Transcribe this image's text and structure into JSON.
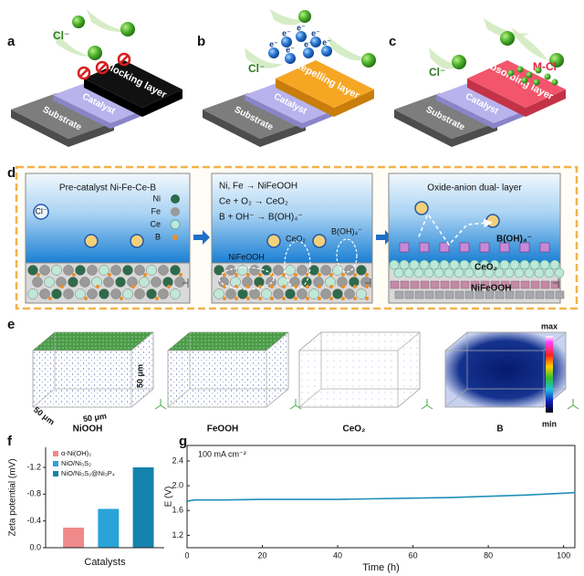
{
  "panel_a": {
    "label": "a",
    "ion": "Cl⁻",
    "layer": "Blocking layer",
    "catalyst": "Catalyst",
    "substrate": "Substrate"
  },
  "panel_b": {
    "label": "b",
    "ion": "Cl⁻",
    "electron": "e⁻",
    "layer": "Repelling layer",
    "catalyst": "Catalyst",
    "substrate": "Substrate"
  },
  "panel_c": {
    "label": "c",
    "ion": "Cl⁻",
    "product": "M-Cl",
    "layer": "Absorbing layer",
    "catalyst": "Catalyst",
    "substrate": "Substrate"
  },
  "panel_d": {
    "label": "d",
    "box1": {
      "title": "Pre-catalyst Ni-Fe-Ce-B",
      "ion": "Cl⁻",
      "legend": [
        "Ni",
        "Fe",
        "Ce",
        "B"
      ]
    },
    "box2": {
      "reactions": [
        "Ni, Fe → NiFeOOH",
        "Ce + O₂ → CeO₂",
        "B + OH⁻ → B(OH)₄⁻"
      ],
      "labels": [
        "NiFeOOH",
        "CeO₂",
        "B(OH)₄⁻"
      ]
    },
    "box3": {
      "title": "Oxide-anion dual- layer",
      "labels": [
        "B(OH)₄⁻",
        "CeO₂",
        "NiFeOOH"
      ]
    }
  },
  "panel_e": {
    "label": "e",
    "materials": [
      "NiOOH",
      "FeOOH",
      "CeO₂",
      "B"
    ],
    "dimension": "50 μm",
    "colorbar": {
      "max": "max",
      "min": "min"
    }
  },
  "chart_data": [
    {
      "type": "bar",
      "panel": "f",
      "ylabel": "Zeta potential (mV)",
      "xlabel": "Catalysts",
      "series": [
        {
          "name": "α-Ni(OH)₂",
          "color": "#f08a8a",
          "values": [
            -0.3
          ]
        },
        {
          "name": "NiO/Ni₃S₂",
          "color": "#2aa3d8",
          "values": [
            -0.58
          ]
        },
        {
          "name": "NiO/Ni₃S₂@Ni₃P₄",
          "color": "#1582ad",
          "values": [
            -1.2
          ]
        }
      ],
      "ylim": [
        0,
        -1.5
      ],
      "yticks": [
        {
          "value": 0,
          "label": "0.0"
        },
        -0.4,
        -0.8,
        -1.2
      ]
    },
    {
      "type": "line",
      "panel": "g",
      "annotation": "100 mA cm⁻²",
      "xlabel": "Time (h)",
      "ylabel": "E (V)",
      "x": [
        0,
        2,
        10,
        20,
        30,
        40,
        50,
        60,
        70,
        80,
        90,
        100,
        103
      ],
      "values": [
        1.75,
        1.77,
        1.77,
        1.78,
        1.78,
        1.78,
        1.79,
        1.8,
        1.81,
        1.83,
        1.85,
        1.88,
        1.89
      ],
      "color": "#1f8fb8",
      "xlim": [
        0,
        103
      ],
      "xticks": [
        0,
        20,
        40,
        60,
        80,
        100
      ],
      "ylim": [
        1.0,
        2.65
      ],
      "yticks": [
        1.2,
        1.6,
        {
          "value": 2,
          "label": "2.0"
        },
        2.4
      ]
    }
  ]
}
